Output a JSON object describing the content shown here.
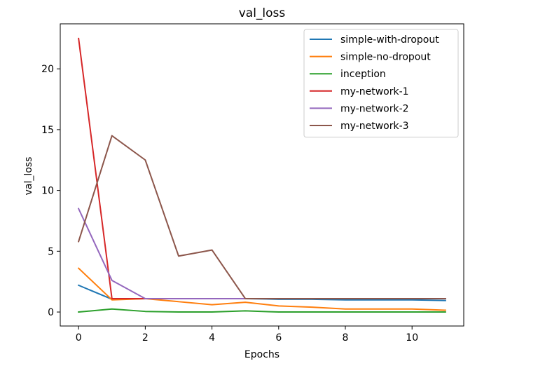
{
  "chart_data": {
    "type": "line",
    "title": "val_loss",
    "xlabel": "Epochs",
    "ylabel": "val_loss",
    "x": [
      0,
      1,
      2,
      3,
      4,
      5,
      6,
      7,
      8,
      9,
      10,
      11
    ],
    "xticks": [
      0,
      2,
      4,
      6,
      8,
      10
    ],
    "yticks": [
      0,
      5,
      10,
      15,
      20
    ],
    "xlim": [
      -0.55,
      11.55
    ],
    "ylim": [
      -1.15,
      23.7
    ],
    "grid": false,
    "legend_position": "top-right",
    "series": [
      {
        "name": "simple-with-dropout",
        "color": "#1f77b4",
        "values": [
          2.2,
          1.05,
          1.1,
          1.1,
          1.1,
          1.1,
          1.05,
          1.05,
          1.0,
          1.0,
          1.0,
          0.95
        ]
      },
      {
        "name": "simple-no-dropout",
        "color": "#ff7f0e",
        "values": [
          3.6,
          1.0,
          1.1,
          0.85,
          0.6,
          0.8,
          0.5,
          0.4,
          0.25,
          0.25,
          0.25,
          0.15
        ]
      },
      {
        "name": "inception",
        "color": "#2ca02c",
        "values": [
          0.0,
          0.25,
          0.05,
          0.0,
          0.0,
          0.1,
          0.0,
          0.0,
          0.0,
          0.0,
          0.0,
          0.0
        ]
      },
      {
        "name": "my-network-1",
        "color": "#d62728",
        "values": [
          22.5,
          1.1,
          1.1,
          1.1,
          1.1,
          1.1,
          1.1,
          1.1,
          1.1,
          1.1,
          1.1,
          1.1
        ]
      },
      {
        "name": "my-network-2",
        "color": "#9467bd",
        "values": [
          8.5,
          2.6,
          1.1,
          1.1,
          1.1,
          1.1,
          1.1,
          1.1,
          1.1,
          1.1,
          1.1,
          1.1
        ]
      },
      {
        "name": "my-network-3",
        "color": "#8c564b",
        "values": [
          5.8,
          14.5,
          12.5,
          4.6,
          5.1,
          1.1,
          1.1,
          1.1,
          1.1,
          1.1,
          1.1,
          1.1
        ]
      }
    ]
  }
}
